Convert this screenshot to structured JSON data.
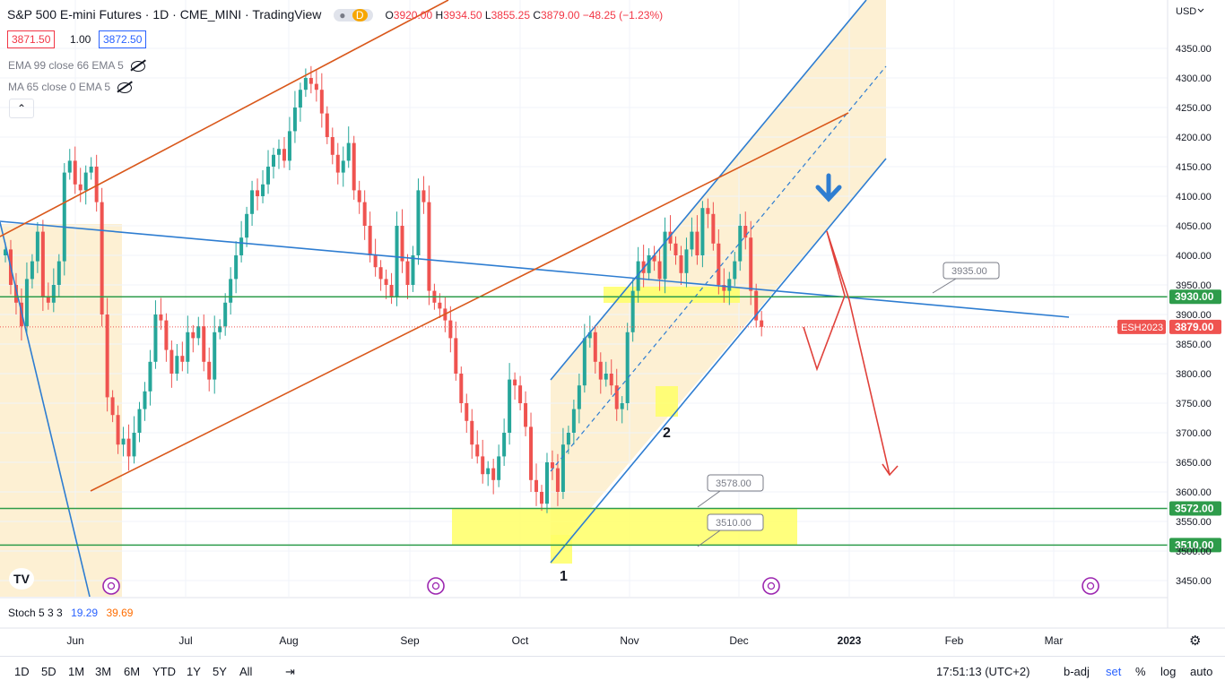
{
  "header": {
    "title": "S&P 500 E-mini Futures · 1D · CME_MINI · TradingView",
    "badge_d": "D",
    "o_label": "O",
    "o": "3920.00",
    "h_label": "H",
    "h": "3934.50",
    "l_label": "L",
    "l": "3855.25",
    "c_label": "C",
    "c": "3879.00",
    "change": "−48.25 (−1.23%)",
    "sell": "3871.50",
    "qty": "1.00",
    "buy": "3872.50"
  },
  "indicators": [
    {
      "label": "EMA 99 close 66 EMA 5"
    },
    {
      "label": "MA 65 close 0 EMA 5"
    }
  ],
  "collapse_icon": "chevron-up",
  "currency": "USD",
  "stoch": {
    "label": "Stoch 5 3 3",
    "k": "19.29",
    "d": "39.69"
  },
  "timeframes": [
    "1D",
    "5D",
    "1M",
    "3M",
    "6M",
    "YTD",
    "1Y",
    "5Y",
    "All"
  ],
  "clock": "17:51:13 (UTC+2)",
  "bottom_right": [
    "b-adj",
    "set",
    "%",
    "log",
    "auto"
  ],
  "colors": {
    "up": "#26a69a",
    "down": "#ef5350",
    "blue": "#2e7dd1",
    "orange": "#d9581b",
    "green": "#2e9c4b",
    "zone": "#fdf0d3",
    "yellow": "#ffff66"
  },
  "chart_data": {
    "type": "candlestick",
    "ylim": [
      3400,
      4400
    ],
    "y_ticks": [
      3450,
      3500,
      3550,
      3600,
      3650,
      3700,
      3750,
      3800,
      3850,
      3900,
      3950,
      4000,
      4050,
      4100,
      4150,
      4200,
      4250,
      4300,
      4350
    ],
    "x_labels": [
      "Jun",
      "Jul",
      "Aug",
      "Sep",
      "Oct",
      "Nov",
      "Dec",
      "2023",
      "Feb",
      "Mar"
    ],
    "last_price": {
      "symbol": "ESH2023",
      "value": "3879.00"
    },
    "levels": [
      {
        "value": 3930,
        "label": "3930.00"
      },
      {
        "value": 3572,
        "label": "3572.00"
      },
      {
        "value": 3510,
        "label": "3510.00"
      }
    ],
    "callouts": [
      {
        "label": "3935.00"
      },
      {
        "label": "3578.00"
      },
      {
        "label": "3510.00"
      }
    ],
    "annotations": [
      "1",
      "2"
    ],
    "closes": [
      4010,
      3950,
      3920,
      3880,
      3960,
      3990,
      4040,
      3930,
      3920,
      3950,
      3990,
      4140,
      4160,
      4120,
      4110,
      4140,
      4150,
      4090,
      3900,
      3760,
      3730,
      3680,
      3690,
      3660,
      3700,
      3740,
      3770,
      3820,
      3900,
      3890,
      3840,
      3800,
      3830,
      3820,
      3870,
      3860,
      3880,
      3820,
      3790,
      3870,
      3880,
      3920,
      3960,
      4000,
      4030,
      4070,
      4110,
      4100,
      4120,
      4150,
      4170,
      4180,
      4160,
      4210,
      4250,
      4280,
      4300,
      4290,
      4280,
      4240,
      4200,
      4170,
      4140,
      4160,
      4190,
      4110,
      4090,
      4050,
      4000,
      3980,
      3960,
      3950,
      3930,
      4050,
      3990,
      3950,
      4000,
      4110,
      4090,
      3940,
      3920,
      3910,
      3890,
      3860,
      3800,
      3750,
      3720,
      3680,
      3660,
      3630,
      3640,
      3620,
      3660,
      3700,
      3790,
      3780,
      3750,
      3710,
      3620,
      3600,
      3580,
      3650,
      3640,
      3600,
      3680,
      3700,
      3740,
      3780,
      3860,
      3870,
      3820,
      3790,
      3800,
      3780,
      3740,
      3750,
      3870,
      3940,
      3990,
      3970,
      4000,
      3990,
      3960,
      4040,
      4020,
      4000,
      3970,
      4010,
      4040,
      4000,
      4080,
      4070,
      4020,
      3950,
      3940,
      3960,
      3990,
      4050,
      4030,
      3940,
      3890,
      3879
    ]
  }
}
